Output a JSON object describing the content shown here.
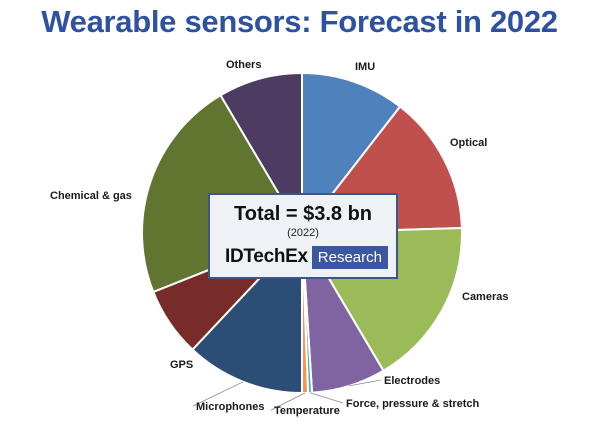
{
  "header": {
    "title": "Wearable sensors: Forecast in 2022"
  },
  "center_box": {
    "total": "Total = $3.8 bn",
    "year": "(2022)",
    "brand_name": "IDTechEx",
    "brand_badge": "Research"
  },
  "colors": {
    "title": "#2f52a0",
    "box_border": "#3c5688",
    "badge": "#3a57a0"
  },
  "chart_data": {
    "type": "pie",
    "title": "Wearable sensors: Forecast in 2022",
    "total_label": "Total = $3.8 bn",
    "unit": "share of total (%)",
    "slices": [
      {
        "label": "IMU",
        "value": 10.5,
        "color": "#4f81bd"
      },
      {
        "label": "Optical",
        "value": 14.0,
        "color": "#c0504d"
      },
      {
        "label": "Cameras",
        "value": 17.0,
        "color": "#9bbb59"
      },
      {
        "label": "Electrodes",
        "value": 7.5,
        "color": "#8064a2"
      },
      {
        "label": "Force, pressure & stretch",
        "value": 0.4,
        "color": "#4bacc6"
      },
      {
        "label": "Temperature",
        "value": 0.6,
        "color": "#f79646"
      },
      {
        "label": "Microphones",
        "value": 12.0,
        "color": "#2c4d75"
      },
      {
        "label": "GPS",
        "value": 7.0,
        "color": "#772c2a"
      },
      {
        "label": "Chemical & gas",
        "value": 22.5,
        "color": "#5f7530"
      },
      {
        "label": "Others",
        "value": 8.5,
        "color": "#4d3b62"
      }
    ]
  }
}
